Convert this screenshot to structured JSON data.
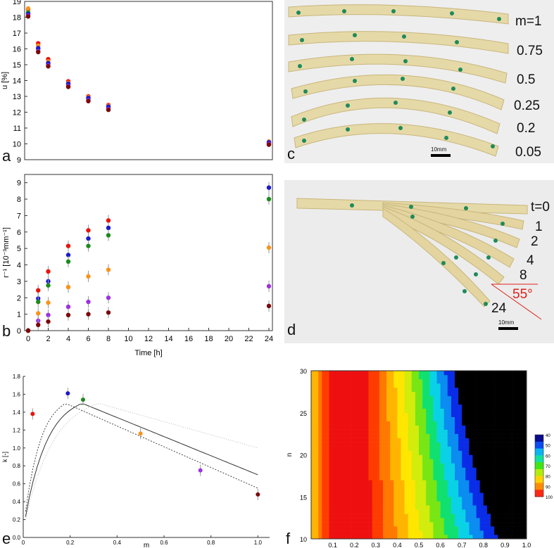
{
  "panel_labels": {
    "a": "a",
    "b": "b",
    "c": "c",
    "d": "d",
    "e": "e",
    "f": "f"
  },
  "photo_c": {
    "labels": [
      "m=1",
      "0.75",
      "0.5",
      "0.25",
      "0.2",
      "0.05"
    ],
    "scale_bar": "10mm"
  },
  "photo_d": {
    "labels": [
      "t=0",
      "1",
      "2",
      "4",
      "8",
      "24"
    ],
    "angle": "55°",
    "scale_bar": "10mm"
  },
  "colors": {
    "red": "#e8140c",
    "blue": "#1a1acc",
    "green": "#1e8a1e",
    "orange": "#f7941d",
    "purple": "#9b33e0",
    "darkred": "#7a0a0a"
  },
  "chart_data": [
    {
      "id": "a",
      "type": "scatter",
      "ylabel": "u [%]",
      "xlabel": "",
      "xlim": [
        0,
        24
      ],
      "ylim": [
        9,
        19
      ],
      "yticks": [
        9,
        10,
        11,
        12,
        13,
        14,
        15,
        16,
        17,
        18,
        19
      ],
      "x": [
        0,
        1,
        2,
        4,
        6,
        8,
        24
      ],
      "series": [
        {
          "name": "m=0.05",
          "color": "#e8140c",
          "values": [
            18.5,
            16.35,
            15.35,
            13.95,
            13.0,
            12.45,
            10.1
          ]
        },
        {
          "name": "m=0.2",
          "color": "#f7941d",
          "values": [
            18.55,
            16.2,
            15.2,
            13.85,
            12.95,
            12.4,
            10.15
          ]
        },
        {
          "name": "m=0.25",
          "color": "#1e8a1e",
          "values": [
            18.3,
            16.0,
            15.05,
            13.75,
            12.85,
            12.3,
            10.05
          ]
        },
        {
          "name": "m=0.5",
          "color": "#1a1acc",
          "values": [
            18.2,
            16.05,
            15.1,
            13.8,
            12.9,
            12.35,
            10.1
          ]
        },
        {
          "name": "m=0.75",
          "color": "#9b33e0",
          "values": [
            18.1,
            15.85,
            14.95,
            13.65,
            12.75,
            12.2,
            10.0
          ]
        },
        {
          "name": "m=1",
          "color": "#7a0a0a",
          "values": [
            18.05,
            15.8,
            14.9,
            13.6,
            12.7,
            12.15,
            9.95
          ]
        }
      ]
    },
    {
      "id": "b",
      "type": "scatter",
      "ylabel": "r⁻¹ [10⁻³mm⁻¹]",
      "xlabel": "Time [h]",
      "xlim": [
        0,
        24
      ],
      "ylim": [
        0,
        9.5
      ],
      "xticks": [
        0,
        2,
        4,
        6,
        8,
        10,
        12,
        14,
        16,
        18,
        20,
        22,
        24
      ],
      "yticks": [
        0,
        1,
        2,
        3,
        4,
        5,
        6,
        7,
        8,
        9
      ],
      "x": [
        0,
        1,
        2,
        4,
        6,
        8,
        24
      ],
      "series": [
        {
          "name": "m=0.05",
          "color": "#e8140c",
          "values": [
            0,
            2.45,
            3.6,
            5.15,
            6.1,
            6.7,
            null
          ]
        },
        {
          "name": "m=0.2",
          "color": "#1a1acc",
          "values": [
            0,
            1.95,
            3.0,
            4.6,
            5.6,
            6.25,
            8.7
          ]
        },
        {
          "name": "m=0.25",
          "color": "#1e8a1e",
          "values": [
            0,
            1.75,
            2.75,
            4.2,
            5.15,
            5.8,
            8.0
          ]
        },
        {
          "name": "m=0.5",
          "color": "#f7941d",
          "values": [
            0,
            1.05,
            1.7,
            2.65,
            3.3,
            3.7,
            5.05
          ]
        },
        {
          "name": "m=0.75",
          "color": "#9b33e0",
          "values": [
            0,
            0.6,
            0.95,
            1.45,
            1.75,
            2.0,
            2.7
          ]
        },
        {
          "name": "m=1",
          "color": "#7a0a0a",
          "values": [
            0,
            0.35,
            0.55,
            0.95,
            1.0,
            1.1,
            1.5
          ]
        }
      ]
    },
    {
      "id": "e",
      "type": "scatter",
      "ylabel": "k [-]",
      "xlabel": "m",
      "xlim": [
        0,
        1.05
      ],
      "ylim": [
        0,
        1.8
      ],
      "xticks": [
        0,
        0.2,
        0.4,
        0.6,
        0.8,
        1.0
      ],
      "yticks": [
        0,
        0.2,
        0.4,
        0.6,
        0.8,
        1.0,
        1.2,
        1.4,
        1.6,
        1.8
      ],
      "points": [
        {
          "m": 0.04,
          "k": 1.38,
          "color": "#e8140c"
        },
        {
          "m": 0.19,
          "k": 1.61,
          "color": "#1a1acc"
        },
        {
          "m": 0.255,
          "k": 1.54,
          "color": "#1e8a1e"
        },
        {
          "m": 0.5,
          "k": 1.16,
          "color": "#f7941d"
        },
        {
          "m": 0.755,
          "k": 0.75,
          "color": "#9b33e0"
        },
        {
          "m": 1.0,
          "k": 0.48,
          "color": "#7a0a0a"
        }
      ],
      "curves": [
        {
          "style": "solid",
          "peak_m": 0.25,
          "peak_k": 1.5,
          "end_k": 0.7
        },
        {
          "style": "dotted",
          "peak_m": 0.18,
          "peak_k": 1.5,
          "end_k": 0.55
        },
        {
          "style": "faint",
          "peak_m": 0.32,
          "peak_k": 1.5,
          "end_k": 1.0
        }
      ]
    },
    {
      "id": "f",
      "type": "heatmap",
      "xlabel": "m",
      "ylabel": "n",
      "xlim": [
        0,
        1.0
      ],
      "ylim": [
        10,
        30
      ],
      "xticks": [
        0.1,
        0.2,
        0.3,
        0.4,
        0.5,
        0.6,
        0.7,
        0.8,
        0.9,
        1.0
      ],
      "yticks": [
        10,
        15,
        20,
        25,
        30
      ],
      "colorbar_ticks": [
        40,
        50,
        60,
        70,
        80,
        90,
        100
      ]
    }
  ]
}
